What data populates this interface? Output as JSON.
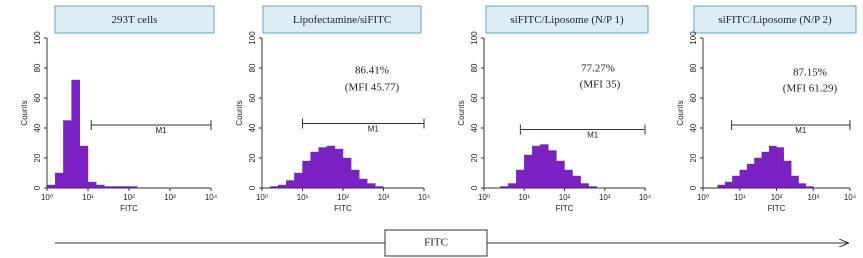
{
  "chart_data": [
    {
      "type": "histogram",
      "title": "293T cells",
      "xlabel": "FITC",
      "ylabel": "Counts",
      "xscale": "log",
      "color": "#7b22c4",
      "bins": [
        1,
        1.585,
        2.512,
        3.981,
        6.31,
        10,
        15.85,
        25.12,
        39.81,
        63.1,
        100,
        158.5,
        251.2,
        398.1,
        631,
        1000,
        1585,
        2512,
        3981,
        6310,
        10000
      ],
      "values": [
        2,
        10,
        45,
        72,
        28,
        4,
        2,
        1,
        1,
        1,
        1,
        0,
        0,
        0,
        0,
        0,
        0,
        0,
        0,
        0
      ],
      "xlim": [
        1,
        10000
      ],
      "ylim": [
        0,
        100
      ],
      "xticks": [
        {
          "value": 1,
          "label": "10⁰"
        },
        {
          "value": 10,
          "label": "10¹"
        },
        {
          "value": 100,
          "label": "10²"
        },
        {
          "value": 1000,
          "label": "10³"
        },
        {
          "value": 10000,
          "label": "10⁴"
        }
      ],
      "yticks": [
        0,
        20,
        40,
        60,
        80,
        100
      ],
      "gate": {
        "label": "M1",
        "range": [
          12,
          10000
        ],
        "level": 42
      }
    },
    {
      "type": "histogram",
      "title": "Lipofectamine/siFITC",
      "xlabel": "FITC",
      "ylabel": "Counts",
      "xscale": "log",
      "color": "#7b22c4",
      "bins": [
        1,
        1.585,
        2.512,
        3.981,
        6.31,
        10,
        15.85,
        25.12,
        39.81,
        63.1,
        100,
        158.5,
        251.2,
        398.1,
        631,
        1000,
        1585,
        2512,
        3981,
        6310,
        10000
      ],
      "values": [
        0,
        1,
        2,
        5,
        10,
        18,
        24,
        27,
        28,
        26,
        20,
        12,
        6,
        3,
        1,
        0,
        0,
        0,
        0,
        0
      ],
      "xlim": [
        1,
        10000
      ],
      "ylim": [
        0,
        100
      ],
      "xticks": [
        {
          "value": 1,
          "label": "10⁰"
        },
        {
          "value": 10,
          "label": "10¹"
        },
        {
          "value": 100,
          "label": "10²"
        },
        {
          "value": 1000,
          "label": "10³"
        },
        {
          "value": 10000,
          "label": "10⁴"
        }
      ],
      "yticks": [
        0,
        20,
        40,
        60,
        80,
        100
      ],
      "gate": {
        "label": "M1",
        "range": [
          10,
          10000
        ],
        "level": 43
      },
      "annotations": [
        "86.41%",
        "(MFI 45.77)"
      ]
    },
    {
      "type": "histogram",
      "title": "siFITC/Liposome (N/P 1)",
      "xlabel": "FITC",
      "ylabel": "Counts",
      "xscale": "log",
      "color": "#7b22c4",
      "bins": [
        1,
        1.585,
        2.512,
        3.981,
        6.31,
        10,
        15.85,
        25.12,
        39.81,
        63.1,
        100,
        158.5,
        251.2,
        398.1,
        631,
        1000,
        1585,
        2512,
        3981,
        6310,
        10000
      ],
      "values": [
        0,
        0,
        1,
        3,
        12,
        22,
        28,
        29,
        25,
        18,
        12,
        8,
        3,
        1,
        0,
        0,
        0,
        0,
        0,
        0
      ],
      "xlim": [
        1,
        10000
      ],
      "ylim": [
        0,
        100
      ],
      "xticks": [
        {
          "value": 1,
          "label": "10⁰"
        },
        {
          "value": 10,
          "label": "10¹"
        },
        {
          "value": 100,
          "label": "10²"
        },
        {
          "value": 1000,
          "label": "10³"
        },
        {
          "value": 10000,
          "label": "10⁴"
        }
      ],
      "yticks": [
        0,
        20,
        40,
        60,
        80,
        100
      ],
      "gate": {
        "label": "M1",
        "range": [
          8,
          10000
        ],
        "level": 39
      },
      "annotations": [
        "77.27%",
        "(MFI 35)"
      ]
    },
    {
      "type": "histogram",
      "title": "siFITC/Liposome (N/P 2)",
      "xlabel": "FITC",
      "ylabel": "Counts",
      "xscale": "log",
      "color": "#7b22c4",
      "bins": [
        1,
        1.585,
        2.512,
        3.981,
        6.31,
        10,
        15.85,
        25.12,
        39.81,
        63.1,
        100,
        158.5,
        251.2,
        398.1,
        631,
        1000,
        1585,
        2512,
        3981,
        6310,
        10000
      ],
      "values": [
        0,
        0,
        2,
        4,
        8,
        12,
        16,
        20,
        24,
        28,
        27,
        18,
        8,
        3,
        1,
        0,
        0,
        0,
        0,
        0
      ],
      "xlim": [
        1,
        10000
      ],
      "ylim": [
        0,
        100
      ],
      "xticks": [
        {
          "value": 1,
          "label": "10⁰"
        },
        {
          "value": 10,
          "label": "10¹"
        },
        {
          "value": 100,
          "label": "10²"
        },
        {
          "value": 1000,
          "label": "10³"
        },
        {
          "value": 10000,
          "label": "10⁴"
        }
      ],
      "yticks": [
        0,
        20,
        40,
        60,
        80,
        100
      ],
      "gate": {
        "label": "M1",
        "range": [
          6,
          10000
        ],
        "level": 42
      },
      "annotations": [
        "87.15%",
        "(MFI 61.29)"
      ]
    }
  ],
  "axis_caption": "FITC"
}
